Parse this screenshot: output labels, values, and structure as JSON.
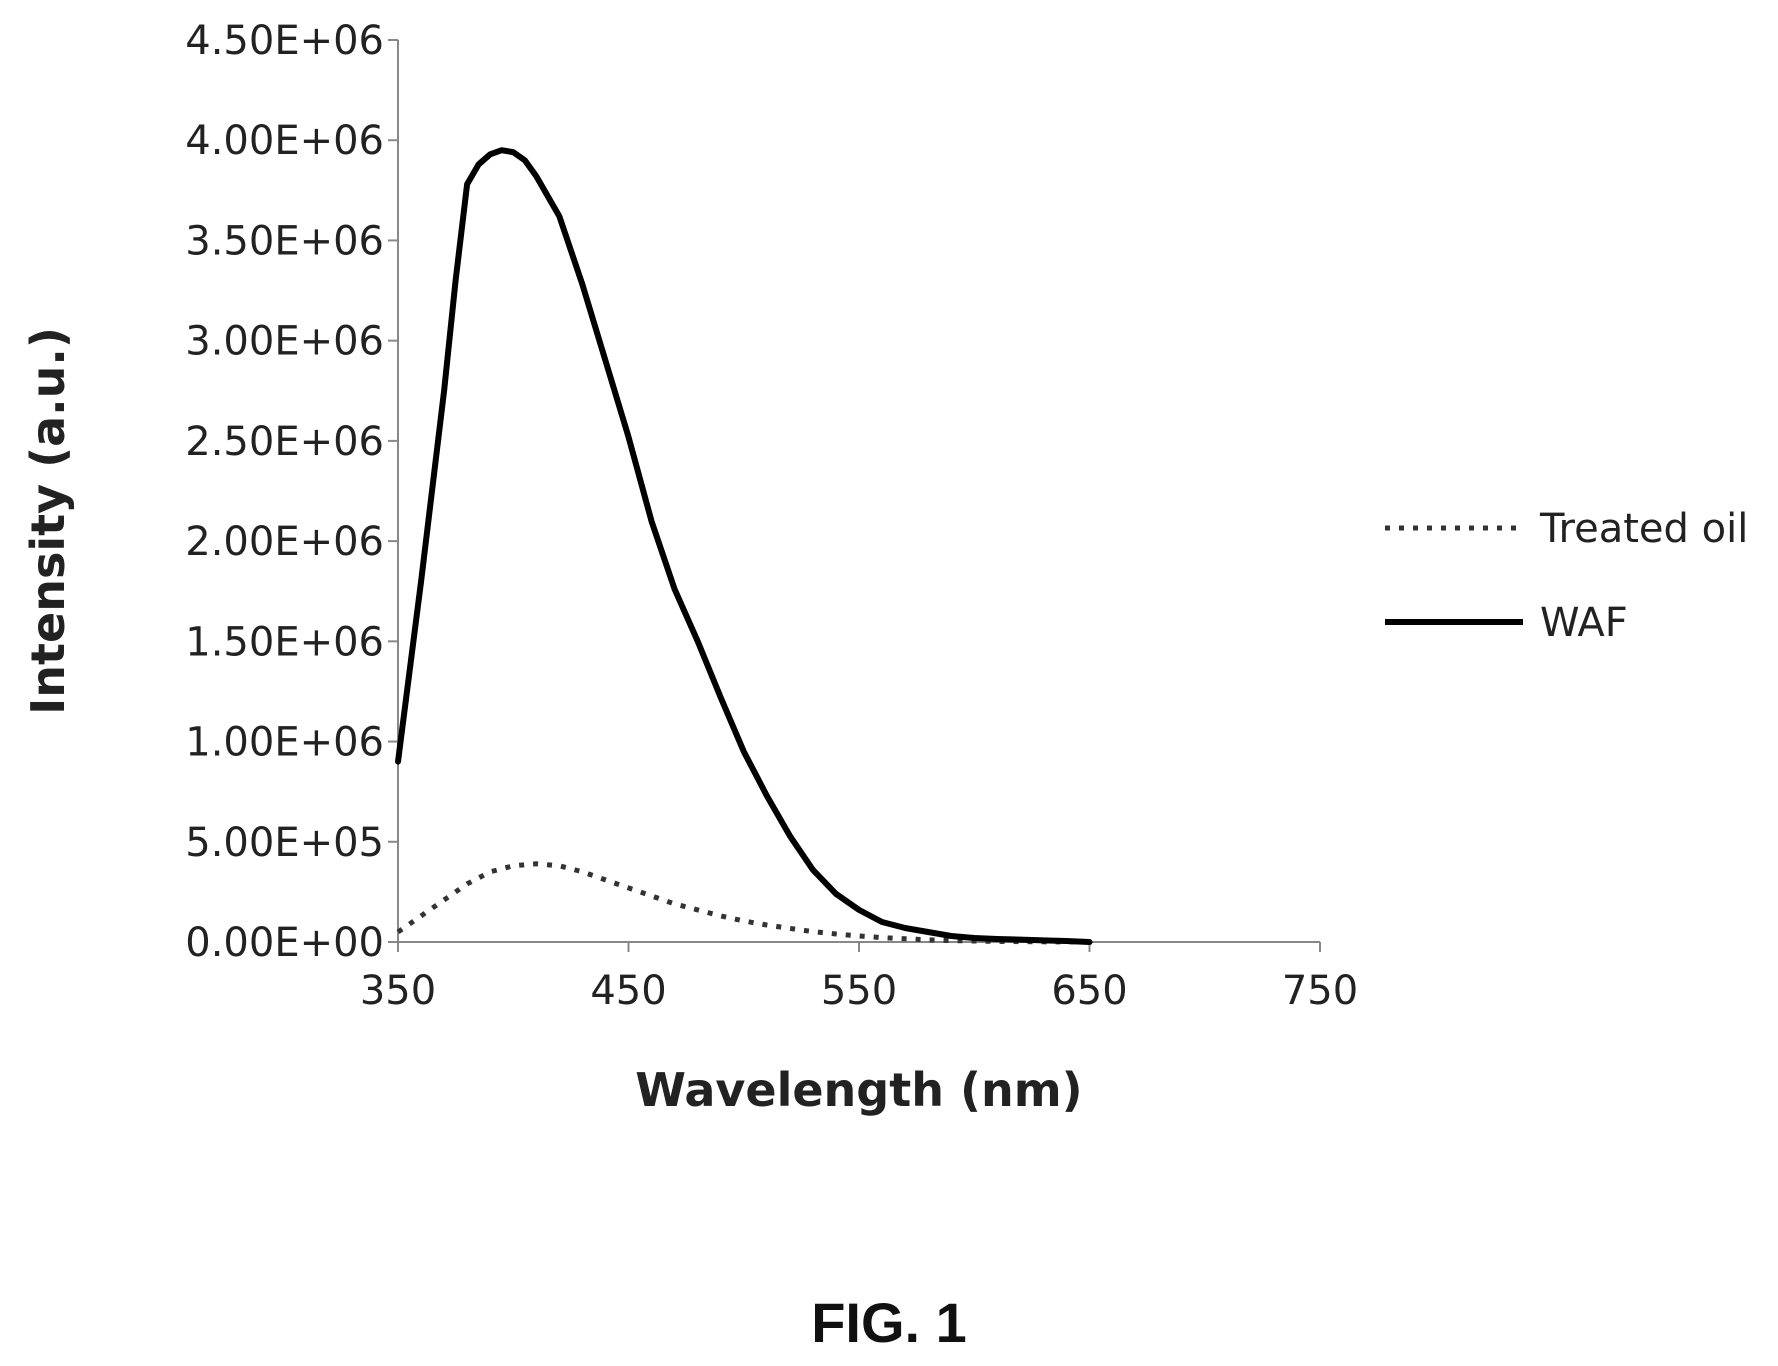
{
  "figure": {
    "caption": "FIG. 1"
  },
  "chart_data": {
    "type": "line",
    "xlabel": "Wavelength (nm)",
    "ylabel": "Intensity (a.u.)",
    "xlim": [
      350,
      750
    ],
    "ylim": [
      0,
      4500000
    ],
    "x_ticks": [
      "350",
      "450",
      "550",
      "650",
      "750"
    ],
    "y_ticks": [
      "0.00E+00",
      "5.00E+05",
      "1.00E+06",
      "1.50E+06",
      "2.00E+06",
      "2.50E+06",
      "3.00E+06",
      "3.50E+06",
      "4.00E+06",
      "4.50E+06"
    ],
    "grid": false,
    "legend_position": "right",
    "series": [
      {
        "name": "Treated oil",
        "style": "dotted",
        "color": "#333333",
        "x": [
          350,
          360,
          370,
          380,
          390,
          400,
          410,
          420,
          430,
          440,
          450,
          460,
          470,
          480,
          490,
          500,
          510,
          520,
          530,
          540,
          550,
          560,
          570,
          580,
          590,
          600,
          610,
          620,
          630,
          640,
          650
        ],
        "y": [
          50000,
          130000,
          210000,
          290000,
          350000,
          380000,
          390000,
          380000,
          350000,
          310000,
          270000,
          230000,
          190000,
          160000,
          130000,
          105000,
          85000,
          68000,
          52000,
          40000,
          30000,
          22000,
          16000,
          11000,
          7000,
          5000,
          3000,
          2000,
          1000,
          500,
          0
        ]
      },
      {
        "name": "WAF",
        "style": "solid",
        "color": "#000000",
        "x": [
          350,
          360,
          370,
          375,
          380,
          385,
          390,
          395,
          400,
          405,
          410,
          420,
          430,
          440,
          450,
          460,
          470,
          480,
          490,
          500,
          510,
          520,
          530,
          540,
          550,
          560,
          570,
          580,
          590,
          600,
          610,
          620,
          630,
          640,
          650
        ],
        "y": [
          900000,
          1800000,
          2750000,
          3300000,
          3780000,
          3880000,
          3930000,
          3950000,
          3940000,
          3900000,
          3820000,
          3620000,
          3280000,
          2900000,
          2520000,
          2100000,
          1760000,
          1500000,
          1220000,
          950000,
          730000,
          530000,
          360000,
          240000,
          160000,
          100000,
          70000,
          50000,
          30000,
          20000,
          15000,
          12000,
          8000,
          5000,
          0
        ]
      }
    ]
  }
}
